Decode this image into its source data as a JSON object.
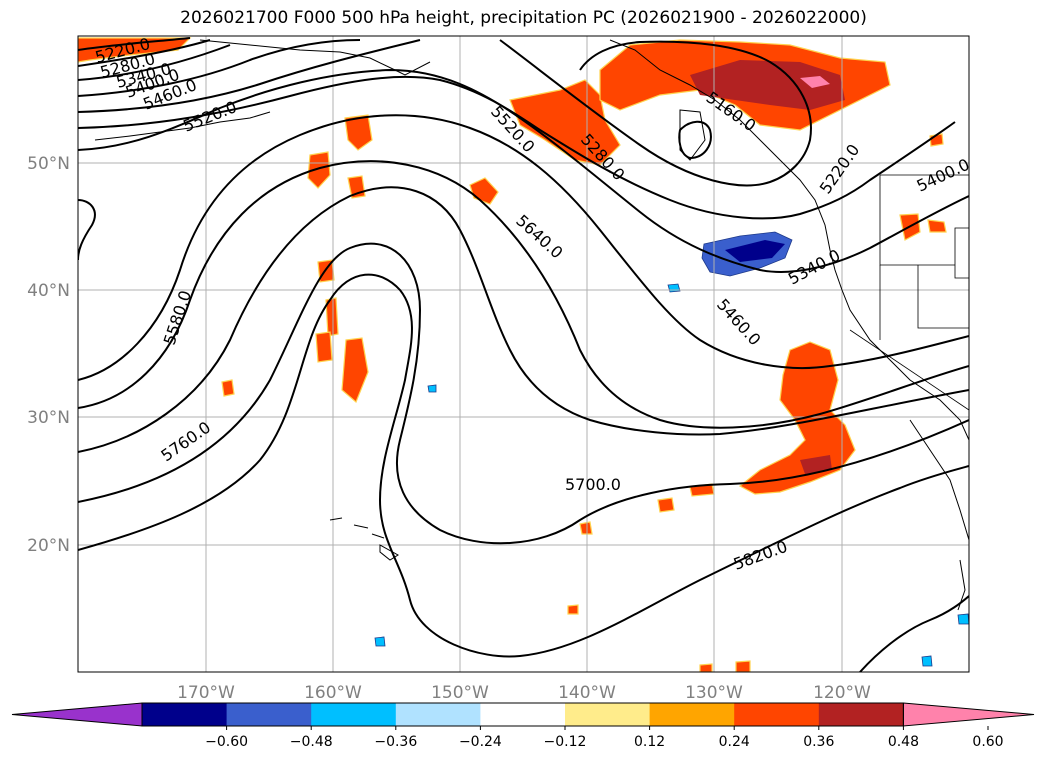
{
  "title": "2026021700 F000 500 hPa height, precipitation PC (2026021900 - 2026022000)",
  "map": {
    "lon_labels": [
      "170°W",
      "160°W",
      "150°W",
      "140°W",
      "130°W",
      "120°W"
    ],
    "lat_labels": [
      "50°N",
      "40°N",
      "30°N",
      "20°N"
    ],
    "contour_labels": [
      "5220.0",
      "5280.0",
      "5340.0",
      "5400.0",
      "5460.0",
      "5520.0",
      "5520.0",
      "5280.0",
      "5640.0",
      "5460.0",
      "5340.0",
      "5220.0",
      "5400.0",
      "5580.0",
      "5760.0",
      "5700.0",
      "5820.0",
      "5160.0"
    ]
  },
  "colorbar": {
    "colors": [
      "#9932cc",
      "#00008b",
      "#3a5fcd",
      "#00bfff",
      "#b0e2ff",
      "#ffffff",
      "#ffec8b",
      "#ffa500",
      "#ff4500",
      "#b22222",
      "#ff82ab"
    ],
    "ticks": [
      "−0.60",
      "−0.48",
      "−0.36",
      "−0.24",
      "−0.12",
      "0.12",
      "0.24",
      "0.36",
      "0.48",
      "0.60"
    ]
  }
}
